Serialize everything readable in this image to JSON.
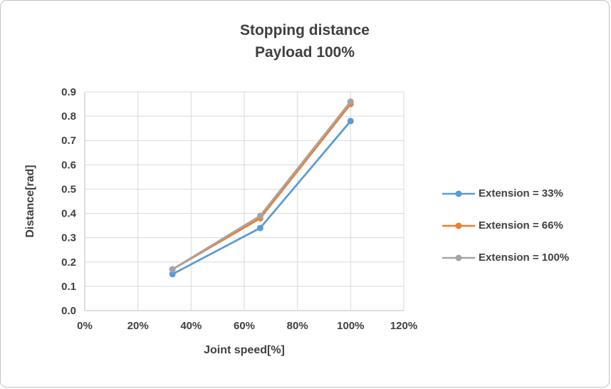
{
  "chart": {
    "title_line1": "Stopping distance",
    "title_line2": "Payload 100%"
  },
  "chart_data": {
    "type": "line",
    "title": "Stopping distance Payload 100%",
    "xlabel": "Joint speed[%]",
    "ylabel": "Distance[rad]",
    "xlim": [
      0,
      120
    ],
    "ylim": [
      0,
      0.9
    ],
    "grid": true,
    "legend_position": "right",
    "x_ticks": {
      "values": [
        0,
        20,
        40,
        60,
        80,
        100,
        120
      ],
      "labels": [
        "0%",
        "20%",
        "40%",
        "60%",
        "80%",
        "100%",
        "120%"
      ]
    },
    "y_ticks": {
      "values": [
        0,
        0.1,
        0.2,
        0.3,
        0.4,
        0.5,
        0.6,
        0.7,
        0.8,
        0.9
      ],
      "labels": [
        "0.0",
        "0.1",
        "0.2",
        "0.3",
        "0.4",
        "0.5",
        "0.6",
        "0.7",
        "0.8",
        "0.9"
      ]
    },
    "x": [
      33,
      66,
      100
    ],
    "series": [
      {
        "name": "Extension = 33%",
        "color": "#5B9BD5",
        "values": [
          0.15,
          0.34,
          0.78
        ]
      },
      {
        "name": "Extension = 66%",
        "color": "#ED7D31",
        "values": [
          0.17,
          0.38,
          0.85
        ]
      },
      {
        "name": "Extension = 100%",
        "color": "#A5A5A5",
        "values": [
          0.17,
          0.39,
          0.86
        ]
      }
    ],
    "colors": {
      "grid": "#D9D9D9",
      "axis": "#BFBFBF",
      "text": "#404040"
    }
  }
}
